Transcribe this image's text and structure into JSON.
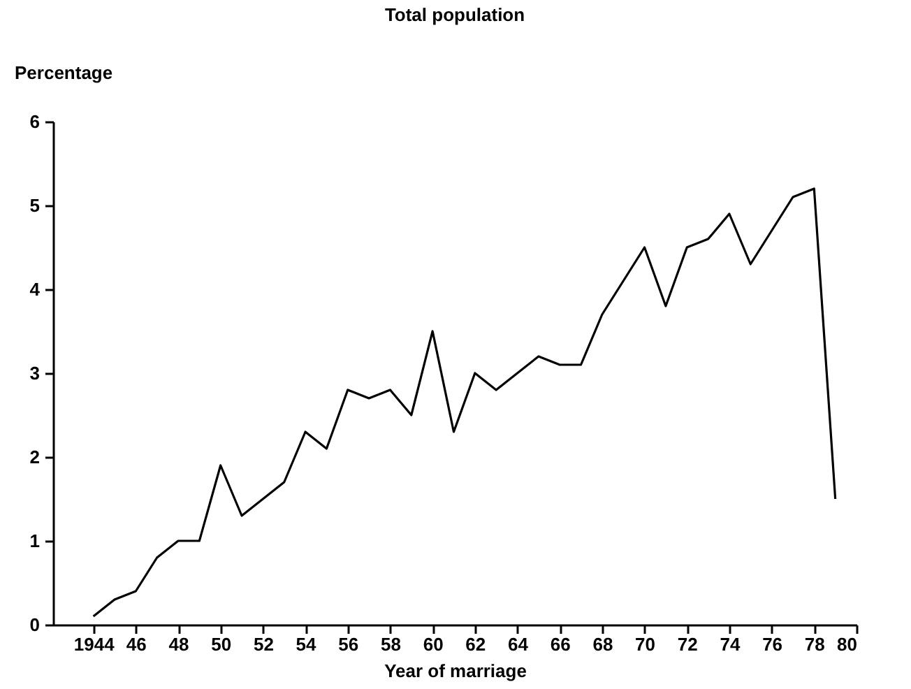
{
  "chart_data": {
    "type": "line",
    "title": "Total population",
    "xlabel": "Year of marriage",
    "ylabel": "Percentage",
    "x": [
      1944,
      1945,
      1946,
      1947,
      1948,
      1949,
      1950,
      1951,
      1952,
      1953,
      1954,
      1955,
      1956,
      1957,
      1958,
      1959,
      1960,
      1961,
      1962,
      1963,
      1964,
      1965,
      1966,
      1967,
      1968,
      1969,
      1970,
      1971,
      1972,
      1973,
      1974,
      1975,
      1976,
      1977,
      1978,
      1979
    ],
    "values": [
      0.1,
      0.3,
      0.4,
      0.8,
      1.0,
      1.0,
      1.9,
      1.3,
      1.5,
      1.7,
      2.3,
      2.1,
      2.8,
      2.7,
      2.8,
      2.5,
      3.5,
      2.3,
      3.0,
      2.8,
      3.0,
      3.2,
      3.1,
      3.1,
      3.7,
      4.1,
      4.5,
      3.8,
      4.5,
      4.6,
      4.9,
      4.3,
      4.7,
      5.1,
      5.2,
      1.5
    ],
    "color": "#000000",
    "xlim": [
      1942.1,
      1980
    ],
    "xticks": [
      1944,
      {
        "value": 1946,
        "label": "46"
      },
      {
        "value": 1948,
        "label": "48"
      },
      {
        "value": 1950,
        "label": "50"
      },
      {
        "value": 1952,
        "label": "52"
      },
      {
        "value": 1954,
        "label": "54"
      },
      {
        "value": 1956,
        "label": "56"
      },
      {
        "value": 1958,
        "label": "58"
      },
      {
        "value": 1960,
        "label": "60"
      },
      {
        "value": 1962,
        "label": "62"
      },
      {
        "value": 1964,
        "label": "64"
      },
      {
        "value": 1966,
        "label": "66"
      },
      {
        "value": 1968,
        "label": "68"
      },
      {
        "value": 1970,
        "label": "70"
      },
      {
        "value": 1972,
        "label": "72"
      },
      {
        "value": 1974,
        "label": "74"
      },
      {
        "value": 1976,
        "label": "76"
      },
      {
        "value": 1978,
        "label": "78"
      },
      {
        "value": 1980,
        "label": "80"
      }
    ],
    "ylim": [
      0,
      6
    ],
    "yticks": [
      0,
      1,
      2,
      3,
      4,
      5,
      6
    ],
    "grid": false,
    "marker": "none",
    "line_style": "solid"
  }
}
